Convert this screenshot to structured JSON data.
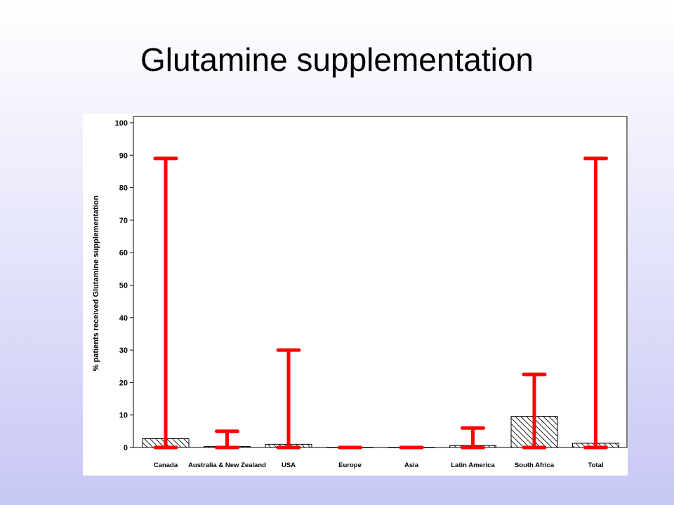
{
  "slide": {
    "title": "Glutamine supplementation"
  },
  "chart_data": {
    "type": "bar",
    "title": "",
    "xlabel": "",
    "ylabel": "% patients received Glutamine supplementation",
    "ylim": [
      0,
      100
    ],
    "yticks": [
      0,
      10,
      20,
      30,
      40,
      50,
      60,
      70,
      80,
      90,
      100
    ],
    "categories": [
      "Canada",
      "Australia  &  New  Zealand",
      "USA",
      "Europe",
      "Asia",
      "Latin  America",
      "South  Africa",
      "Total"
    ],
    "series": [
      {
        "values": [
          2.7,
          0.3,
          1.0,
          0,
          0,
          0.6,
          9.6,
          1.3
        ]
      }
    ],
    "error_bars": {
      "lower": [
        0,
        0,
        0,
        0,
        0,
        0,
        0,
        0
      ],
      "upper": [
        89,
        5,
        30,
        0,
        0,
        6,
        22.5,
        89
      ]
    },
    "bar_fill": "diagonal hatch",
    "colors": {
      "error_bar": "#ff0000",
      "bar_stroke": "#000000",
      "hatch": "#000000"
    },
    "grid": false,
    "legend": "none"
  }
}
